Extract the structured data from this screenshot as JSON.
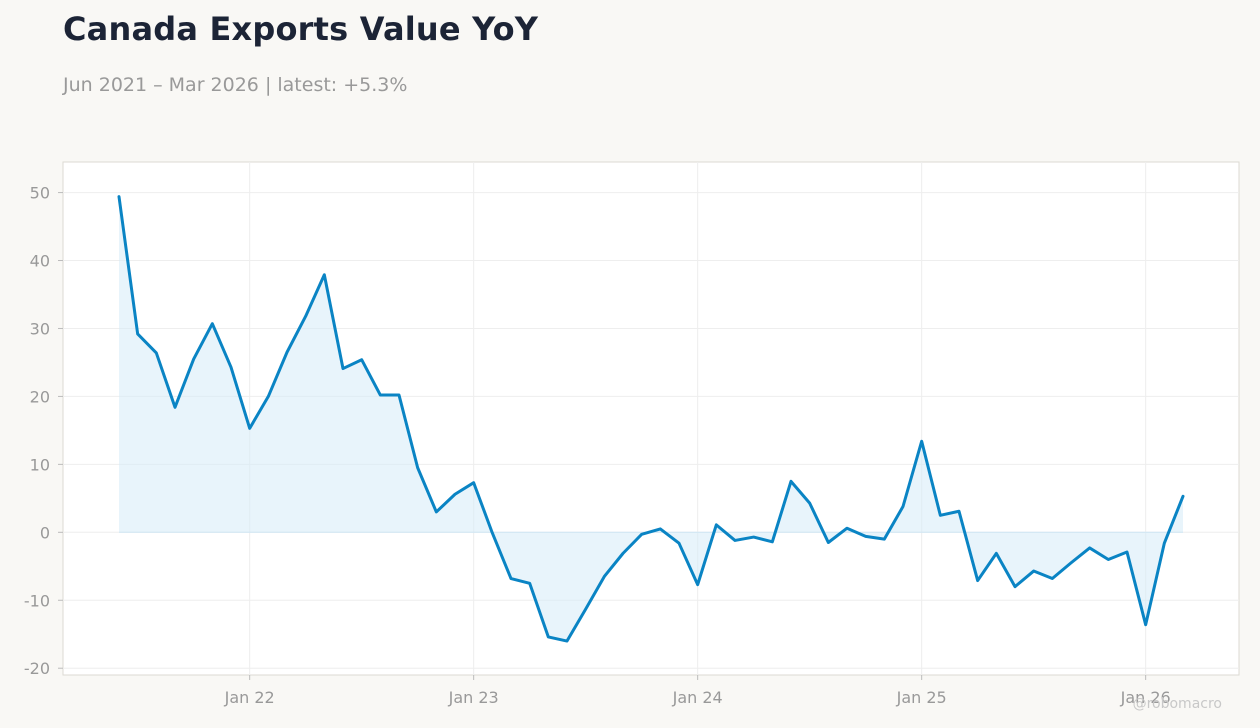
{
  "header": {
    "title": "Canada Exports Value YoY",
    "subtitle": "Jun 2021 – Mar 2026 | latest: +5.3%"
  },
  "watermark": "@robomacro",
  "colors": {
    "line": "#0a84c4",
    "fill": "#d6ebf8",
    "background": "#f9f8f5",
    "plot_background": "#ffffff",
    "grid": "#eeeeee",
    "axis_text": "#999999"
  },
  "chart_data": {
    "type": "area",
    "title": "Canada Exports Value YoY",
    "subtitle": "Jun 2021 – Mar 2026 | latest: +5.3%",
    "xlabel": "",
    "ylabel": "",
    "ylim": [
      -21,
      54.5
    ],
    "xlim": [
      "2021-03-01",
      "2026-06-01"
    ],
    "grid": true,
    "legend": "none",
    "yticks": [
      -20,
      -10,
      0,
      10,
      20,
      30,
      40,
      50
    ],
    "xticks": [
      {
        "date": "2022-01-01",
        "label": "Jan 22"
      },
      {
        "date": "2023-01-01",
        "label": "Jan 23"
      },
      {
        "date": "2024-01-01",
        "label": "Jan 24"
      },
      {
        "date": "2025-01-01",
        "label": "Jan 25"
      },
      {
        "date": "2026-01-01",
        "label": "Jan 26"
      }
    ],
    "x": [
      "2021-06",
      "2021-07",
      "2021-08",
      "2021-09",
      "2021-10",
      "2021-11",
      "2021-12",
      "2022-01",
      "2022-02",
      "2022-03",
      "2022-04",
      "2022-05",
      "2022-06",
      "2022-07",
      "2022-08",
      "2022-09",
      "2022-10",
      "2022-11",
      "2022-12",
      "2023-01",
      "2023-02",
      "2023-03",
      "2023-04",
      "2023-05",
      "2023-06",
      "2023-07",
      "2023-08",
      "2023-09",
      "2023-10",
      "2023-11",
      "2023-12",
      "2024-01",
      "2024-02",
      "2024-03",
      "2024-04",
      "2024-05",
      "2024-06",
      "2024-07",
      "2024-08",
      "2024-09",
      "2024-10",
      "2024-11",
      "2024-12",
      "2025-01",
      "2025-02",
      "2025-03",
      "2025-04",
      "2025-05",
      "2025-06",
      "2025-07",
      "2025-08",
      "2025-09",
      "2025-10",
      "2025-11",
      "2025-12",
      "2026-01",
      "2026-02",
      "2026-03"
    ],
    "values": [
      49.4,
      29.2,
      26.4,
      18.4,
      25.5,
      30.7,
      24.3,
      15.3,
      20.0,
      26.5,
      31.8,
      37.9,
      24.1,
      25.4,
      20.2,
      20.2,
      9.5,
      3.0,
      5.6,
      7.3,
      -0.1,
      -6.8,
      -7.5,
      -15.4,
      -16.0,
      -11.3,
      -6.5,
      -3.1,
      -0.3,
      0.5,
      -1.6,
      -7.7,
      1.1,
      -1.2,
      -0.7,
      -1.4,
      7.5,
      4.3,
      -1.5,
      0.6,
      -0.6,
      -1.0,
      3.8,
      13.4,
      2.5,
      3.1,
      -7.1,
      -3.1,
      -8.0,
      -5.7,
      -6.8,
      -4.5,
      -2.3,
      -4.0,
      -2.9,
      -13.6,
      -1.6,
      5.3
    ]
  }
}
